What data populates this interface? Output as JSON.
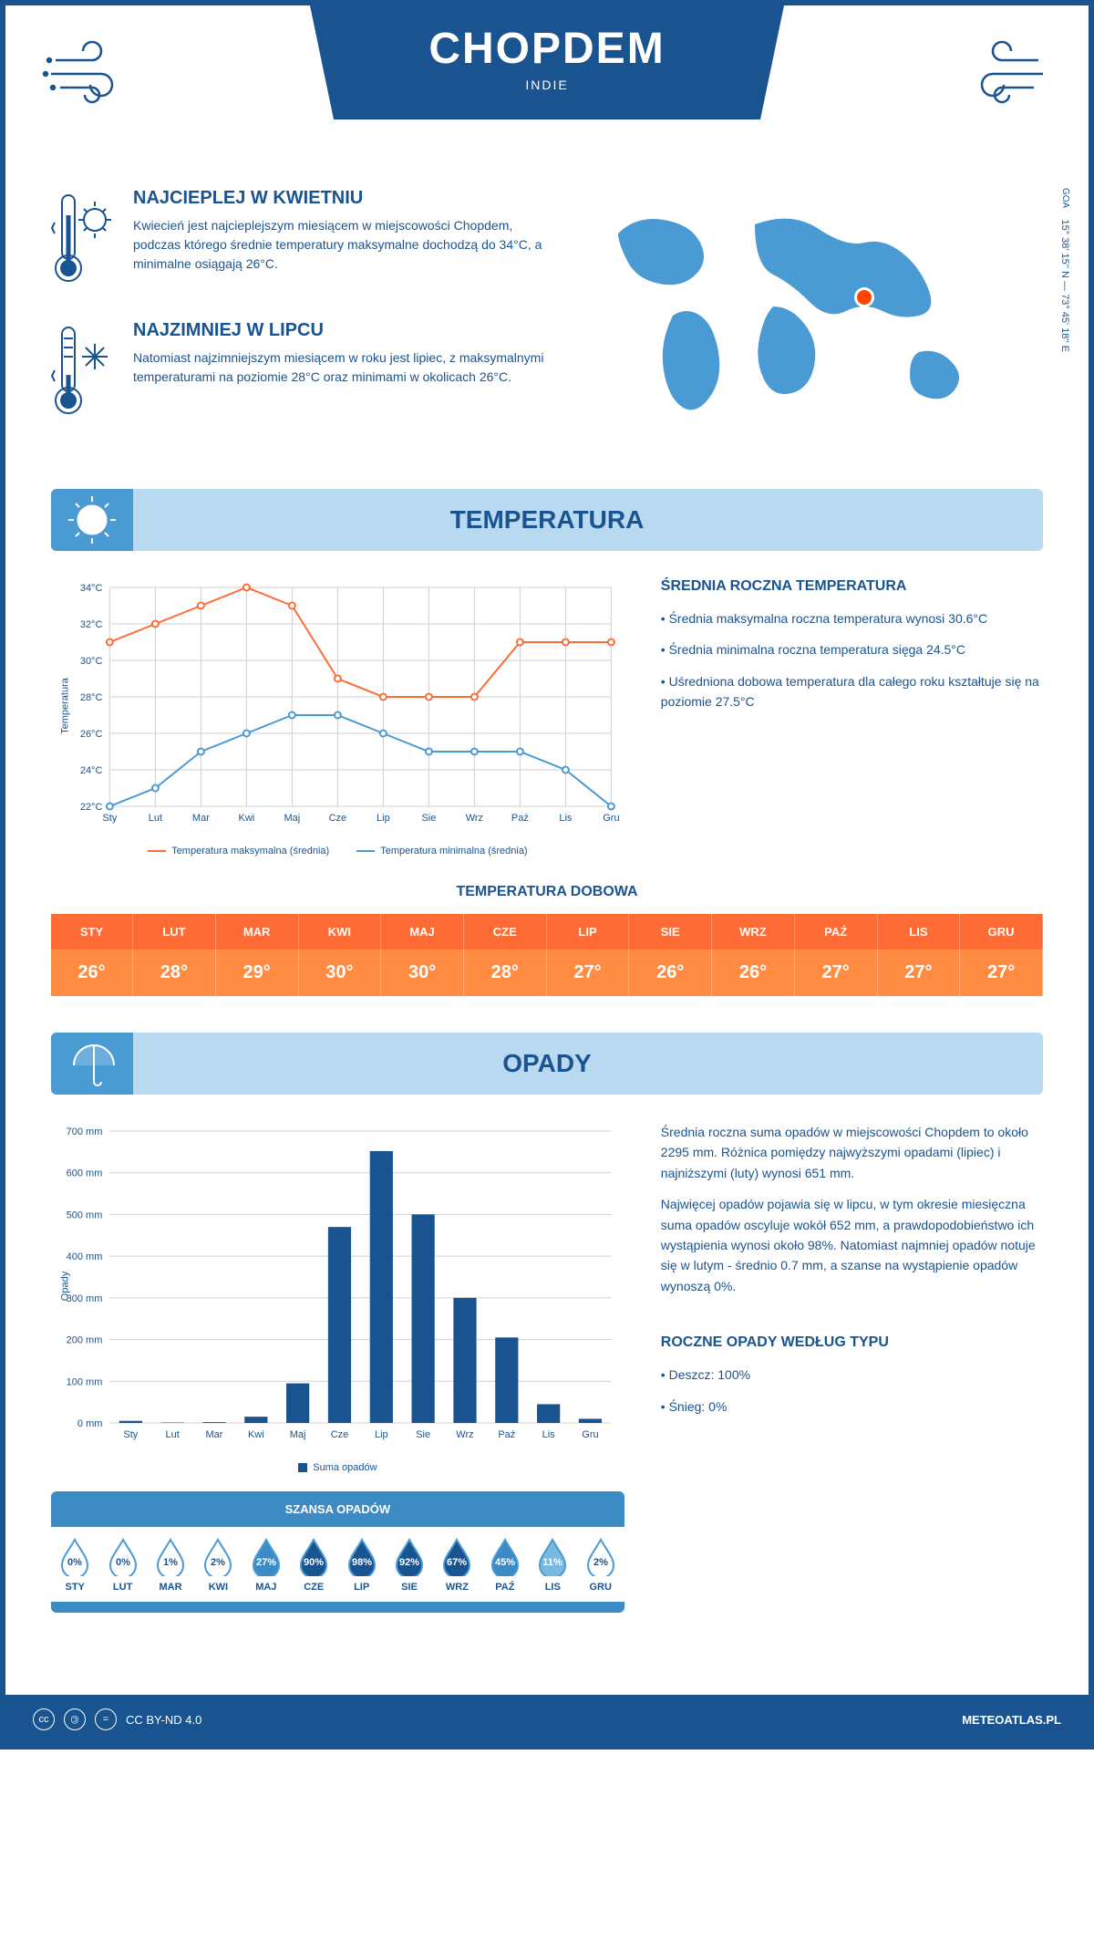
{
  "header": {
    "title": "CHOPDEM",
    "subtitle": "INDIE"
  },
  "coords": {
    "region": "GOA",
    "text": "15° 38' 15'' N — 73° 45' 18'' E"
  },
  "info_hot": {
    "title": "NAJCIEPLEJ W KWIETNIU",
    "text": "Kwiecień jest najcieplejszym miesiącem w miejscowości Chopdem, podczas którego średnie temperatury maksymalne dochodzą do 34°C, a minimalne osiągają 26°C."
  },
  "info_cold": {
    "title": "NAJZIMNIEJ W LIPCU",
    "text": "Natomiast najzimniejszym miesiącem w roku jest lipiec, z maksymalnymi temperaturami na poziomie 28°C oraz minimami w okolicach 26°C."
  },
  "section_temp": "TEMPERATURA",
  "section_precip": "OPADY",
  "temp_chart": {
    "type": "line",
    "months": [
      "Sty",
      "Lut",
      "Mar",
      "Kwi",
      "Maj",
      "Cze",
      "Lip",
      "Sie",
      "Wrz",
      "Paź",
      "Lis",
      "Gru"
    ],
    "max_series": [
      31,
      32,
      33,
      34,
      33,
      29,
      28,
      28,
      28,
      31,
      31,
      31
    ],
    "min_series": [
      22,
      23,
      25,
      26,
      27,
      27,
      26,
      25,
      25,
      25,
      24,
      22
    ],
    "max_color": "#ff6b35",
    "min_color": "#4a9ad4",
    "ylabel": "Temperatura",
    "ylim": [
      22,
      34
    ],
    "ytick_step": 2,
    "grid_color": "#d8d8d8",
    "background": "#ffffff",
    "legend_max": "Temperatura maksymalna (średnia)",
    "legend_min": "Temperatura minimalna (średnia)"
  },
  "temp_info": {
    "title": "ŚREDNIA ROCZNA TEMPERATURA",
    "p1": "• Średnia maksymalna roczna temperatura wynosi 30.6°C",
    "p2": "• Średnia minimalna roczna temperatura sięga 24.5°C",
    "p3": "• Uśredniona dobowa temperatura dla całego roku kształtuje się na poziomie 27.5°C"
  },
  "daily_temp": {
    "title": "TEMPERATURA DOBOWA",
    "months": [
      "STY",
      "LUT",
      "MAR",
      "KWI",
      "MAJ",
      "CZE",
      "LIP",
      "SIE",
      "WRZ",
      "PAŹ",
      "LIS",
      "GRU"
    ],
    "values": [
      "26°",
      "28°",
      "29°",
      "30°",
      "30°",
      "28°",
      "27°",
      "26°",
      "26°",
      "27°",
      "27°",
      "27°"
    ],
    "header_bg": "#ff6b35",
    "cell_bg": "#ff8c42"
  },
  "precip_chart": {
    "type": "bar",
    "months": [
      "Sty",
      "Lut",
      "Mar",
      "Kwi",
      "Maj",
      "Cze",
      "Lip",
      "Sie",
      "Wrz",
      "Paź",
      "Lis",
      "Gru"
    ],
    "values": [
      5,
      1,
      2,
      15,
      95,
      470,
      652,
      500,
      300,
      205,
      45,
      10
    ],
    "bar_color": "#1a5490",
    "ylabel": "Opady",
    "ylim": [
      0,
      700
    ],
    "ytick_step": 100,
    "grid_color": "#d8d8d8",
    "legend": "Suma opadów"
  },
  "precip_info": {
    "p1": "Średnia roczna suma opadów w miejscowości Chopdem to około 2295 mm. Różnica pomiędzy najwyższymi opadami (lipiec) i najniższymi (luty) wynosi 651 mm.",
    "p2": "Najwięcej opadów pojawia się w lipcu, w tym okresie miesięczna suma opadów oscyluje wokół 652 mm, a prawdopodobieństwo ich wystąpienia wynosi około 98%. Natomiast najmniej opadów notuje się w lutym - średnio 0.7 mm, a szanse na wystąpienie opadów wynoszą 0%."
  },
  "chance": {
    "title": "SZANSA OPADÓW",
    "months": [
      "STY",
      "LUT",
      "MAR",
      "KWI",
      "MAJ",
      "CZE",
      "LIP",
      "SIE",
      "WRZ",
      "PAŹ",
      "LIS",
      "GRU"
    ],
    "values": [
      0,
      0,
      1,
      2,
      27,
      90,
      98,
      92,
      67,
      45,
      11,
      2
    ],
    "empty_border": "#4a9ad4",
    "fill_dark": "#1a5490",
    "fill_mid": "#3d8bc4",
    "fill_light": "#7ab8e0"
  },
  "precip_type": {
    "title": "ROCZNE OPADY WEDŁUG TYPU",
    "rain": "• Deszcz: 100%",
    "snow": "• Śnieg: 0%"
  },
  "footer": {
    "license": "CC BY-ND 4.0",
    "site": "METEOATLAS.PL"
  }
}
